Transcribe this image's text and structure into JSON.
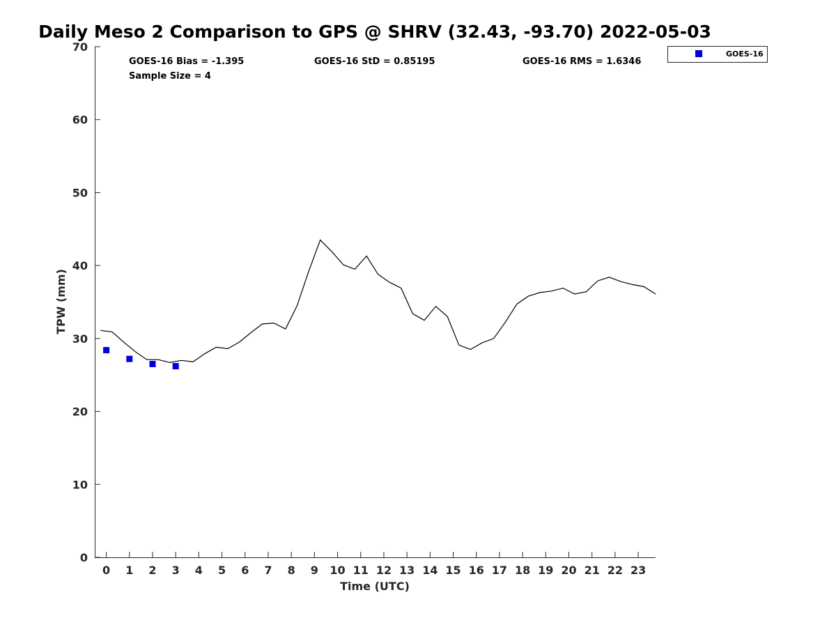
{
  "chart_data": {
    "type": "line",
    "title": "Daily Meso 2 Comparison to GPS @ SHRV (32.43, -93.70) 2022-05-03",
    "xlabel": "Time (UTC)",
    "ylabel": "TPW (mm)",
    "xlim": [
      -0.5,
      23.75
    ],
    "ylim": [
      0,
      70
    ],
    "x_ticks": [
      0,
      1,
      2,
      3,
      4,
      5,
      6,
      7,
      8,
      9,
      10,
      11,
      12,
      13,
      14,
      15,
      16,
      17,
      18,
      19,
      20,
      21,
      22,
      23
    ],
    "y_ticks": [
      0,
      10,
      20,
      30,
      40,
      50,
      60,
      70
    ],
    "grid": false,
    "legend_position": "top-right-outside",
    "stats": {
      "bias": "GOES-16 Bias = -1.395",
      "std": "GOES-16 StD = 0.85195",
      "rms": "GOES-16 RMS = 1.6346",
      "sample_size": "Sample Size = 4"
    },
    "series": [
      {
        "kind": "line",
        "color": "#000000",
        "points": [
          [
            -0.25,
            31.1
          ],
          [
            0.25,
            30.9
          ],
          [
            0.75,
            29.5
          ],
          [
            1.25,
            28.2
          ],
          [
            1.75,
            27.1
          ],
          [
            2.25,
            27.1
          ],
          [
            2.75,
            26.7
          ],
          [
            3.25,
            27.0
          ],
          [
            3.75,
            26.8
          ],
          [
            4.25,
            27.9
          ],
          [
            4.75,
            28.8
          ],
          [
            5.25,
            28.6
          ],
          [
            5.75,
            29.5
          ],
          [
            6.25,
            30.8
          ],
          [
            6.75,
            32.0
          ],
          [
            7.25,
            32.1
          ],
          [
            7.75,
            31.3
          ],
          [
            8.25,
            34.5
          ],
          [
            8.75,
            39.2
          ],
          [
            9.25,
            43.5
          ],
          [
            9.75,
            41.9
          ],
          [
            10.25,
            40.1
          ],
          [
            10.75,
            39.5
          ],
          [
            11.25,
            41.3
          ],
          [
            11.75,
            38.8
          ],
          [
            12.25,
            37.7
          ],
          [
            12.75,
            36.9
          ],
          [
            13.25,
            33.4
          ],
          [
            13.75,
            32.5
          ],
          [
            14.25,
            34.4
          ],
          [
            14.75,
            33.0
          ],
          [
            15.25,
            29.1
          ],
          [
            15.75,
            28.5
          ],
          [
            16.25,
            29.4
          ],
          [
            16.75,
            30.0
          ],
          [
            17.25,
            32.2
          ],
          [
            17.75,
            34.7
          ],
          [
            18.25,
            35.8
          ],
          [
            18.75,
            36.3
          ],
          [
            19.25,
            36.5
          ],
          [
            19.75,
            36.9
          ],
          [
            20.25,
            36.1
          ],
          [
            20.75,
            36.4
          ],
          [
            21.25,
            37.9
          ],
          [
            21.75,
            38.4
          ],
          [
            22.25,
            37.8
          ],
          [
            22.75,
            37.4
          ],
          [
            23.25,
            37.1
          ],
          [
            23.75,
            36.1
          ]
        ]
      },
      {
        "name": "GOES-16",
        "kind": "scatter",
        "color": "#0000dd",
        "points": [
          [
            0,
            28.4
          ],
          [
            1,
            27.2
          ],
          [
            2,
            26.5
          ],
          [
            3,
            26.2
          ]
        ]
      }
    ]
  }
}
